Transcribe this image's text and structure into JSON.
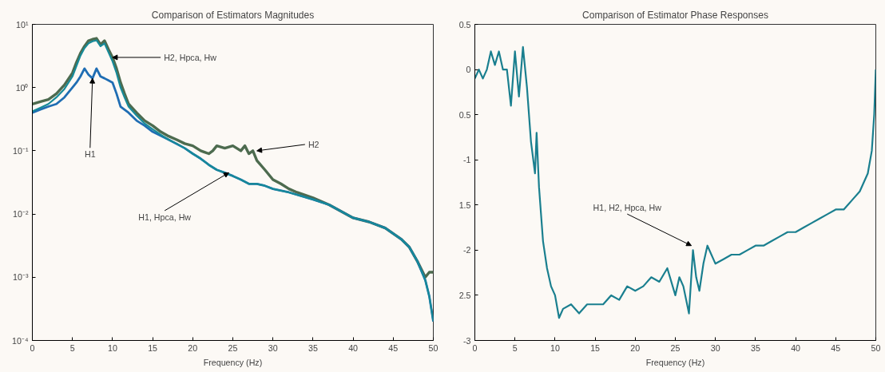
{
  "chart_data": [
    {
      "type": "line",
      "title": "Comparison of Estimators Magnitudes",
      "xlabel": "Frequency (Hz)",
      "log": "y",
      "xlim": [
        0,
        50
      ],
      "xticks": [
        0,
        5,
        10,
        15,
        20,
        25,
        30,
        35,
        40,
        45,
        50
      ],
      "ylim": [
        0.0001,
        10
      ],
      "yticks": [
        {
          "value": 0.0001,
          "label": "10⁻⁴"
        },
        {
          "value": 0.001,
          "label": "10⁻³"
        },
        {
          "value": 0.01,
          "label": "10⁻²"
        },
        {
          "value": 0.1,
          "label": "10⁻¹"
        },
        {
          "value": 1,
          "label": "10⁰"
        },
        {
          "value": 10,
          "label": "10¹"
        }
      ],
      "series": [
        {
          "color": "#4d6b4f",
          "x": [
            0,
            1,
            2,
            3,
            4,
            5,
            5.5,
            6,
            6.5,
            7,
            7.5,
            8,
            8.5,
            9,
            9.5,
            10,
            10.5,
            11,
            11.5,
            12,
            13,
            14,
            15,
            16,
            17,
            18,
            19,
            20,
            21,
            22,
            22.5,
            23,
            24,
            25,
            26,
            26.5,
            27,
            27.5,
            28,
            29,
            30,
            31,
            32,
            33,
            35,
            37,
            40,
            42,
            44,
            46,
            47,
            48,
            49,
            49.5,
            50
          ],
          "values": [
            0.55,
            0.6,
            0.65,
            0.8,
            1.1,
            1.7,
            2.5,
            3.5,
            4.5,
            5.5,
            5.8,
            6.0,
            4.8,
            5.5,
            4.0,
            3.0,
            2.0,
            1.2,
            0.8,
            0.55,
            0.4,
            0.3,
            0.25,
            0.2,
            0.17,
            0.15,
            0.13,
            0.12,
            0.1,
            0.09,
            0.1,
            0.12,
            0.11,
            0.12,
            0.1,
            0.12,
            0.09,
            0.1,
            0.07,
            0.05,
            0.035,
            0.03,
            0.025,
            0.022,
            0.018,
            0.014,
            0.0087,
            0.0075,
            0.006,
            0.004,
            0.003,
            0.0018,
            0.001,
            0.0012,
            0.0012
          ]
        },
        {
          "color": "#1f6db3",
          "x": [
            0,
            1,
            2,
            3,
            4,
            5,
            5.5,
            6,
            6.5,
            7,
            7.5,
            8,
            8.5,
            9,
            9.5,
            10,
            10.5,
            11,
            12,
            13,
            14,
            15,
            17,
            19,
            20,
            21,
            22,
            23,
            24,
            25,
            26,
            27,
            28,
            29,
            30,
            32,
            35,
            37,
            40,
            42,
            44,
            46,
            47,
            48,
            49,
            49.5,
            50
          ],
          "values": [
            0.4,
            0.45,
            0.5,
            0.55,
            0.7,
            1.0,
            1.2,
            1.5,
            2.0,
            1.6,
            1.4,
            2.0,
            1.5,
            1.4,
            1.3,
            1.2,
            0.8,
            0.5,
            0.4,
            0.3,
            0.25,
            0.2,
            0.15,
            0.11,
            0.09,
            0.075,
            0.06,
            0.05,
            0.045,
            0.04,
            0.035,
            0.03,
            0.03,
            0.028,
            0.025,
            0.022,
            0.017,
            0.014,
            0.0087,
            0.0075,
            0.006,
            0.004,
            0.003,
            0.0018,
            0.0009,
            0.0005,
            0.0002
          ]
        },
        {
          "color": "#168a98",
          "x": [
            0,
            1,
            2,
            3,
            4,
            5,
            5.5,
            6,
            6.5,
            7,
            7.5,
            8,
            8.5,
            9,
            9.5,
            10,
            10.5,
            11,
            11.5,
            12,
            13,
            14,
            15,
            16,
            17,
            18,
            19,
            20,
            21,
            22,
            23,
            24,
            25,
            26,
            27,
            28,
            29,
            30,
            32,
            35,
            37,
            40,
            42,
            44,
            46,
            47,
            48,
            49,
            49.5,
            50
          ],
          "values": [
            0.42,
            0.48,
            0.55,
            0.7,
            0.95,
            1.5,
            2.2,
            3.2,
            4.2,
            5.0,
            5.4,
            5.6,
            4.5,
            5.0,
            3.6,
            2.6,
            1.7,
            1.0,
            0.7,
            0.5,
            0.36,
            0.27,
            0.22,
            0.18,
            0.15,
            0.13,
            0.11,
            0.09,
            0.075,
            0.06,
            0.05,
            0.045,
            0.04,
            0.035,
            0.03,
            0.03,
            0.028,
            0.025,
            0.022,
            0.017,
            0.014,
            0.0087,
            0.0075,
            0.006,
            0.004,
            0.003,
            0.0018,
            0.0009,
            0.0005,
            0.0002
          ]
        }
      ],
      "annotations": [
        {
          "text": "H2, Hpca, Hw",
          "x": 10,
          "y": 3.0
        },
        {
          "text": "H1",
          "x": 7.5,
          "y": 1.4
        },
        {
          "text": "H2",
          "x": 28,
          "y": 0.1
        },
        {
          "text": "H1, Hpca, Hw",
          "x": 24.5,
          "y": 0.045
        }
      ]
    },
    {
      "type": "line",
      "title": "Comparison of Estimator Phase Responses",
      "xlabel": "Frequency (Hz)",
      "xlim": [
        0,
        50
      ],
      "xticks": [
        0,
        5,
        10,
        15,
        20,
        25,
        30,
        35,
        40,
        45,
        50
      ],
      "ylim": [
        -3,
        0.5
      ],
      "yticks": [
        0.5,
        0,
        {
          "value": -0.5,
          "label": "0.5"
        },
        -1,
        {
          "value": -1.5,
          "label": "1.5"
        },
        -2,
        {
          "value": -2.5,
          "label": "2.5"
        },
        -3
      ],
      "series": [
        {
          "color": "#1a7f8f",
          "x": [
            0,
            0.5,
            1,
            1.5,
            2,
            2.5,
            3,
            3.5,
            4,
            4.5,
            5,
            5.5,
            6,
            6.5,
            7,
            7.5,
            7.7,
            8,
            8.5,
            9,
            9.5,
            10,
            10.5,
            11,
            12,
            13,
            14,
            15,
            16,
            17,
            18,
            19,
            20,
            21,
            22,
            23,
            24,
            25,
            25.5,
            26,
            26.7,
            27.2,
            27.6,
            28,
            28.5,
            29,
            30,
            31,
            32,
            33,
            34,
            35,
            36,
            37,
            38,
            39,
            40,
            41,
            42,
            43,
            44,
            45,
            46,
            47,
            48,
            49,
            49.5,
            49.8,
            50
          ],
          "values": [
            -0.1,
            0,
            -0.1,
            0,
            0.2,
            0.05,
            0.2,
            0,
            0,
            -0.4,
            0.2,
            -0.3,
            0.25,
            -0.2,
            -0.8,
            -1.15,
            -0.7,
            -1.3,
            -1.9,
            -2.2,
            -2.4,
            -2.5,
            -2.75,
            -2.65,
            -2.6,
            -2.7,
            -2.6,
            -2.6,
            -2.6,
            -2.5,
            -2.55,
            -2.4,
            -2.45,
            -2.4,
            -2.3,
            -2.35,
            -2.2,
            -2.5,
            -2.3,
            -2.4,
            -2.7,
            -2.0,
            -2.3,
            -2.45,
            -2.15,
            -1.95,
            -2.15,
            -2.1,
            -2.05,
            -2.05,
            -2.0,
            -1.95,
            -1.95,
            -1.9,
            -1.85,
            -1.8,
            -1.8,
            -1.75,
            -1.7,
            -1.65,
            -1.6,
            -1.55,
            -1.55,
            -1.45,
            -1.35,
            -1.15,
            -0.9,
            -0.5,
            0
          ]
        }
      ],
      "annotations": [
        {
          "text": "H1, H2, Hpca, Hw",
          "x": 27,
          "y": -1.95
        }
      ]
    }
  ]
}
